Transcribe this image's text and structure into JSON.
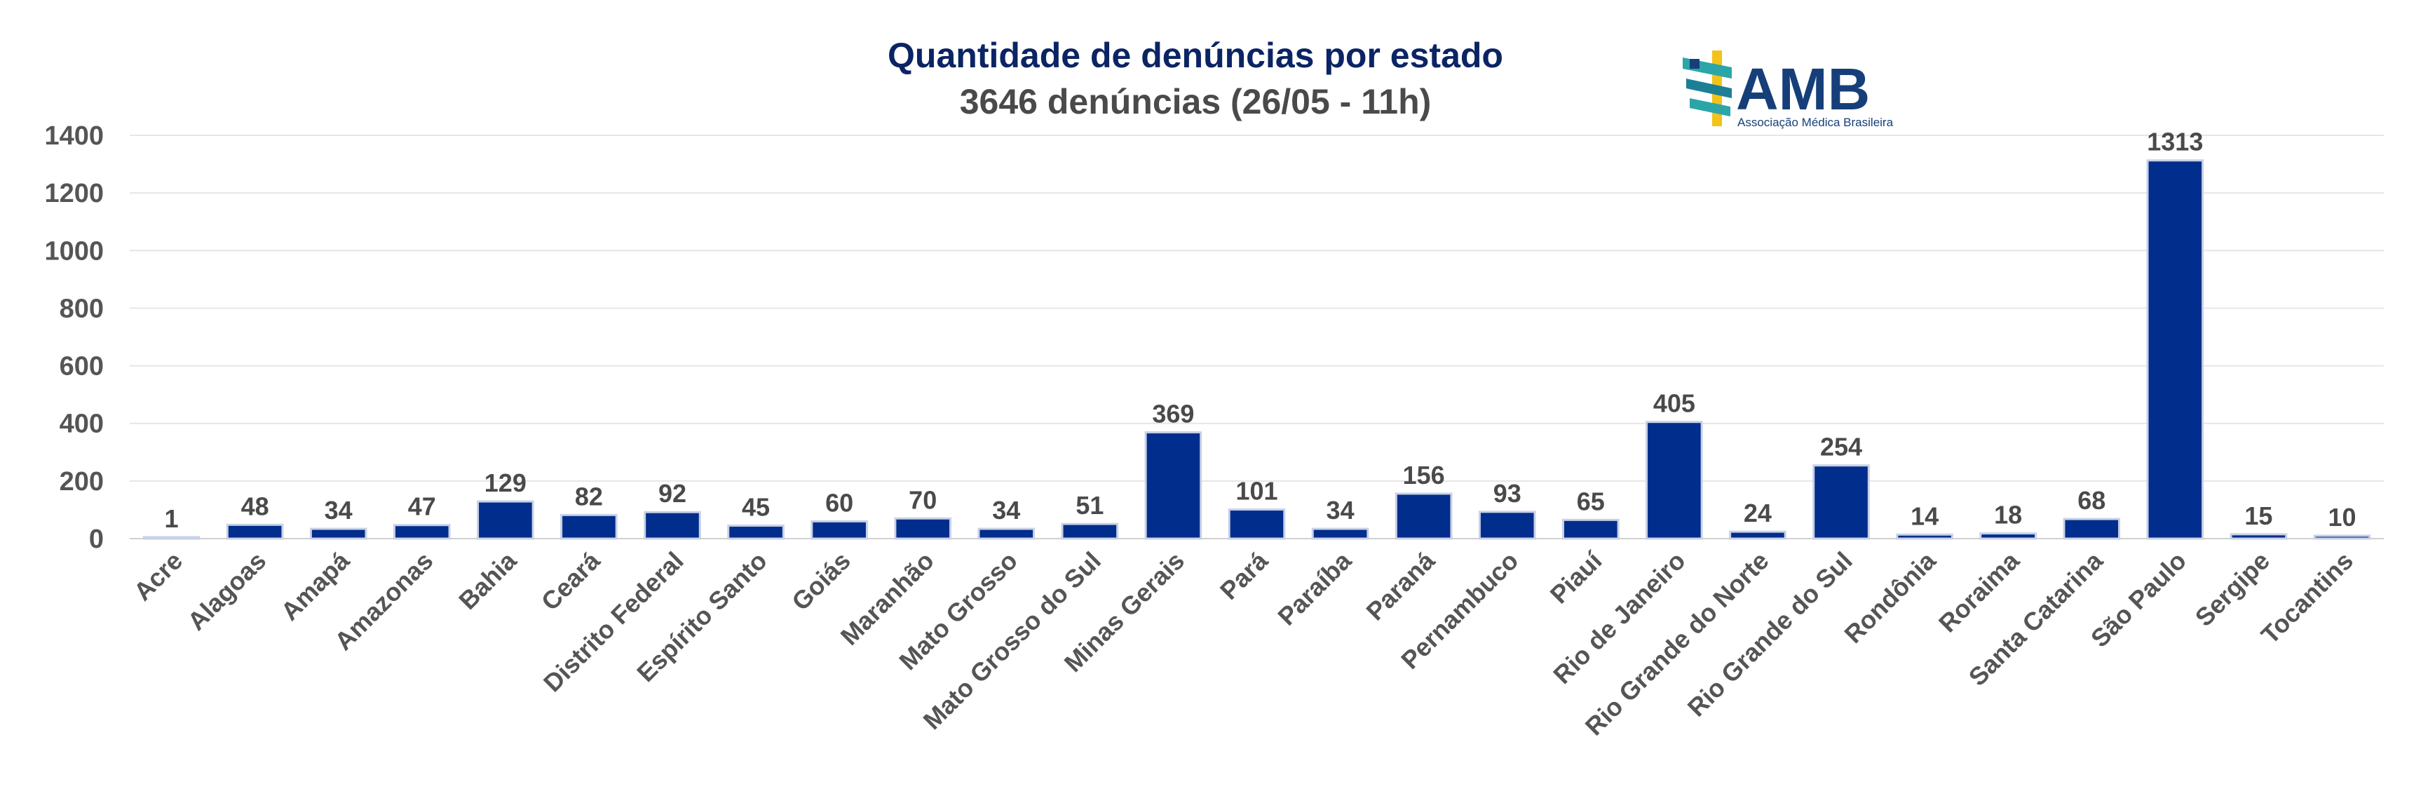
{
  "chart_data": {
    "type": "bar",
    "title": "Quantidade de denúncias por estado",
    "subtitle": "3646 denúncias (26/05 - 11h)",
    "xlabel": "",
    "ylabel": "",
    "ylim": [
      0,
      1400
    ],
    "yticks": [
      0,
      200,
      400,
      600,
      800,
      1000,
      1200,
      1400
    ],
    "grid": true,
    "categories": [
      "Acre",
      "Alagoas",
      "Amapá",
      "Amazonas",
      "Bahia",
      "Ceará",
      "Distrito Federal",
      "Espírito Santo",
      "Goiás",
      "Maranhão",
      "Mato Grosso",
      "Mato Grosso do Sul",
      "Minas Gerais",
      "Pará",
      "Paraíba",
      "Paraná",
      "Pernambuco",
      "Piauí",
      "Rio de Janeiro",
      "Rio Grande do Norte",
      "Rio Grande do Sul",
      "Rondônia",
      "Roraima",
      "Santa Catarina",
      "São Paulo",
      "Sergipe",
      "Tocantins"
    ],
    "values": [
      1,
      48,
      34,
      47,
      129,
      82,
      92,
      45,
      60,
      70,
      34,
      51,
      369,
      101,
      34,
      156,
      93,
      65,
      405,
      24,
      254,
      14,
      18,
      68,
      1313,
      15,
      10
    ],
    "bar_color": "#012d8c"
  },
  "logo": {
    "name": "AMB",
    "tagline": "Associação Médica Brasileira",
    "colors": {
      "blue": "#163f7a",
      "teal": "#2aa6a9",
      "yellow": "#f2c318"
    }
  }
}
